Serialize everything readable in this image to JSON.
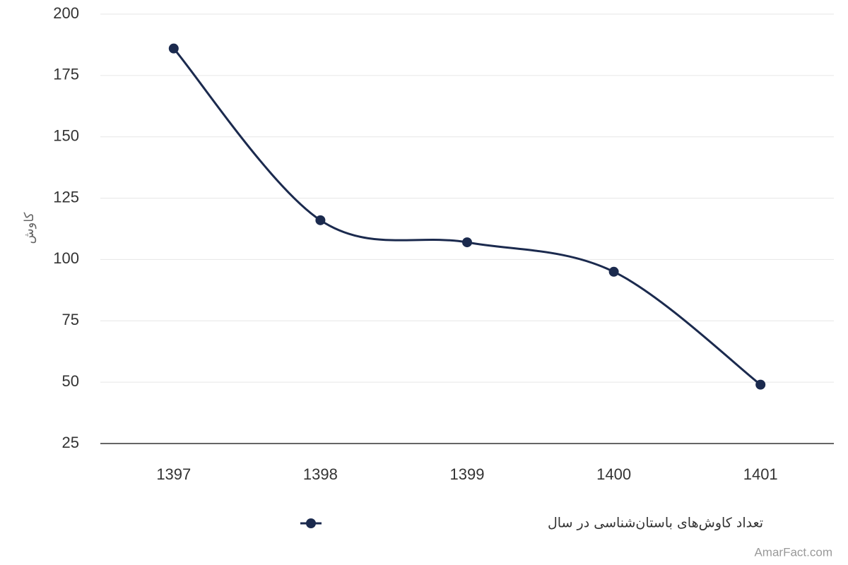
{
  "chart_data": {
    "type": "line",
    "y_axis_label": "کاوش",
    "categories": [
      "1397",
      "1398",
      "1399",
      "1400",
      "1401"
    ],
    "series": [
      {
        "name": "تعداد کاوش‌های باستان‌شناسی در سال",
        "color": "#1b2a4e",
        "values": [
          186,
          116,
          107,
          95,
          49
        ]
      }
    ],
    "ylim": [
      25,
      200
    ],
    "yticks": [
      25,
      50,
      75,
      100,
      125,
      150,
      175,
      200
    ],
    "grid": true,
    "legend": "bottom",
    "credit": "AmarFact.com"
  }
}
